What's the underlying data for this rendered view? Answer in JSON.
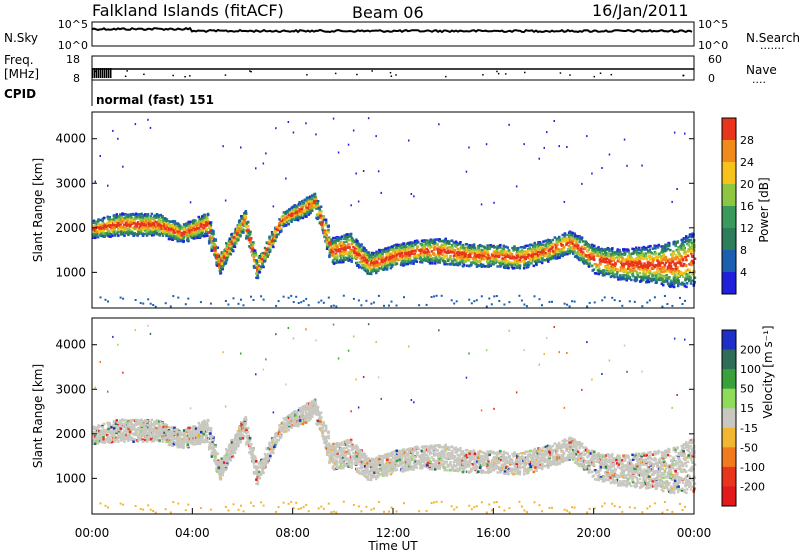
{
  "header": {
    "station": "Falkland Islands (fitACF)",
    "beam": "Beam 06",
    "date": "16/Jan/2011"
  },
  "side_labels": {
    "nsky": "N.Sky",
    "nsearch": "N.Search",
    "nsearch_dots": "·······",
    "freq": "Freq.",
    "freq_unit": "[MHz]",
    "nave": "Nave",
    "nave_dots": "····",
    "cpid": "CPID"
  },
  "noise_panel": {
    "ticks_left": [
      "10^5",
      "10^0"
    ],
    "ticks_right": [
      "10^5",
      "10^0"
    ]
  },
  "freq_panel": {
    "ticks_left": [
      "18",
      "8"
    ],
    "ticks_right": [
      "60",
      "0"
    ]
  },
  "cpid_text": "normal (fast) 151",
  "chart_data": [
    {
      "type": "heatmap",
      "name": "power",
      "ylabel": "Slant Range [km]",
      "yticks": [
        "4000",
        "3000",
        "2000",
        "1000"
      ],
      "ylim": [
        200,
        4600
      ],
      "xlim": [
        0,
        24
      ],
      "colorbar_label": "Power [dB]",
      "colorbar_ticks": [
        "28",
        "24",
        "20",
        "16",
        "12",
        "8",
        "4"
      ],
      "colors": [
        "#1f1fdc",
        "#1a5fb0",
        "#2e7d5a",
        "#3a9a5c",
        "#8ec641",
        "#f6c21b",
        "#f08a1c",
        "#e8351c"
      ]
    },
    {
      "type": "heatmap",
      "name": "velocity",
      "ylabel": "Slant Range [km]",
      "yticks": [
        "4000",
        "3000",
        "2000",
        "1000"
      ],
      "ylim": [
        200,
        4600
      ],
      "xlim": [
        0,
        24
      ],
      "xlabel": "Time UT",
      "xticks": [
        "00:00",
        "04:00",
        "08:00",
        "12:00",
        "16:00",
        "20:00",
        "00:00"
      ],
      "colorbar_label": "Velocity [m s⁻¹]",
      "colorbar_ticks": [
        "200",
        "100",
        "50",
        "15",
        "-15",
        "-50",
        "-100",
        "-200"
      ],
      "colors": [
        "#1e2fc8",
        "#2e6e58",
        "#3aa03a",
        "#8edc5a",
        "#c8c8c0",
        "#f2b632",
        "#f07a1c",
        "#e8351c",
        "#e31a1c"
      ]
    }
  ]
}
